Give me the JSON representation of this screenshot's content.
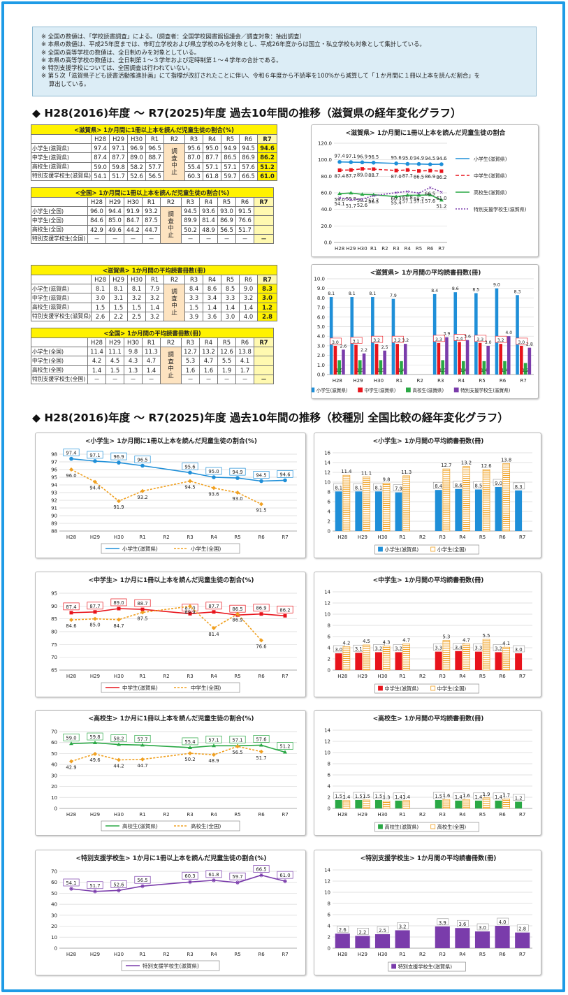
{
  "notes": [
    "※ 全国の数値は、「学校読書調査」による。（調査者：全国学校図書館協議会／調査対象：抽出調査）",
    "※ 本県の数値は、平成25年度までは、市町立学校および県立学校のみを対象とし、平成26年度からは国立・私立学校も対象として集計している。",
    "※ 全国の高等学校の数値は、全日制のみを対象としている。",
    "※ 本県の高等学校の数値は、全日制第１～３学年および定時制第１～４学年の合計である。",
    "※ 特別支援学校については、全国調査は行われていない。",
    "※ 第５次「滋賀県子ども読書活動推進計画」にて指標が改訂されたことに伴い、令和６年度から不読率を100%から減算して「１か月間に１冊以上本を読んだ割合」を",
    "　 算出している。"
  ],
  "sections": [
    "◆ H28(2016)年度 ～ R7(2025)年度  過去10年間の推移（滋賀県の経年変化グラフ）",
    "◆ H28(2016)年度 ～ R7(2025)年度  過去10年間の推移（校種別  全国比較の経年変化グラフ）"
  ],
  "years": [
    "H28",
    "H29",
    "H30",
    "R1",
    "R2",
    "R3",
    "R4",
    "R5",
    "R6",
    "R7"
  ],
  "suspended": "調査中止",
  "dash": "－",
  "tables": [
    {
      "title": "<滋賀県>  1か月間に1冊以上本を読んだ児童生徒の割合(%)",
      "rows": [
        {
          "label": "小学生(滋賀県)",
          "values": [
            "97.4",
            "97.1",
            "96.9",
            "96.5",
            "",
            "95.6",
            "95.0",
            "94.9",
            "94.5",
            "94.6"
          ]
        },
        {
          "label": "中学生(滋賀県)",
          "values": [
            "87.4",
            "87.7",
            "89.0",
            "88.7",
            "",
            "87.0",
            "87.7",
            "86.5",
            "86.9",
            "86.2"
          ]
        },
        {
          "label": "高校生(滋賀県)",
          "values": [
            "59.0",
            "59.8",
            "58.2",
            "57.7",
            "",
            "55.4",
            "57.1",
            "57.1",
            "57.6",
            "51.2"
          ]
        },
        {
          "label": "特別支援学校生(滋賀県)",
          "values": [
            "54.1",
            "51.7",
            "52.6",
            "56.5",
            "",
            "60.3",
            "61.8",
            "59.7",
            "66.5",
            "61.0"
          ]
        }
      ]
    },
    {
      "title": "<全国>  1か月間に1冊以上本を読んだ児童生徒の割合(%)",
      "rows": [
        {
          "label": "小学生(全国)",
          "values": [
            "96.0",
            "94.4",
            "91.9",
            "93.2",
            "",
            "94.5",
            "93.6",
            "93.0",
            "91.5",
            ""
          ]
        },
        {
          "label": "中学生(全国)",
          "values": [
            "84.6",
            "85.0",
            "84.7",
            "87.5",
            "",
            "89.9",
            "81.4",
            "86.9",
            "76.6",
            ""
          ]
        },
        {
          "label": "高校生(全国)",
          "values": [
            "42.9",
            "49.6",
            "44.2",
            "44.7",
            "",
            "50.2",
            "48.9",
            "56.5",
            "51.7",
            ""
          ]
        },
        {
          "label": "特別支援学校生(全国)",
          "values": [
            "－",
            "－",
            "－",
            "－",
            "",
            "－",
            "－",
            "－",
            "－",
            "－"
          ]
        }
      ]
    },
    {
      "title": "<滋賀県>  1か月間の平均読書冊数(冊)",
      "rows": [
        {
          "label": "小学生(滋賀県)",
          "values": [
            "8.1",
            "8.1",
            "8.1",
            "7.9",
            "",
            "8.4",
            "8.6",
            "8.5",
            "9.0",
            "8.3"
          ]
        },
        {
          "label": "中学生(滋賀県)",
          "values": [
            "3.0",
            "3.1",
            "3.2",
            "3.2",
            "",
            "3.3",
            "3.4",
            "3.3",
            "3.2",
            "3.0"
          ]
        },
        {
          "label": "高校生(滋賀県)",
          "values": [
            "1.5",
            "1.5",
            "1.5",
            "1.4",
            "",
            "1.5",
            "1.4",
            "1.4",
            "1.4",
            "1.2"
          ]
        },
        {
          "label": "特別支援学校生(滋賀県)",
          "values": [
            "2.6",
            "2.2",
            "2.5",
            "3.2",
            "",
            "3.9",
            "3.6",
            "3.0",
            "4.0",
            "2.8"
          ]
        }
      ]
    },
    {
      "title": "<全国>  1か月間の平均読書冊数(冊)",
      "rows": [
        {
          "label": "小学生(全国)",
          "values": [
            "11.4",
            "11.1",
            "9.8",
            "11.3",
            "",
            "12.7",
            "13.2",
            "12.6",
            "13.8",
            ""
          ]
        },
        {
          "label": "中学生(全国)",
          "values": [
            "4.2",
            "4.5",
            "4.3",
            "4.7",
            "",
            "5.3",
            "4.7",
            "5.5",
            "4.1",
            ""
          ]
        },
        {
          "label": "高校生(全国)",
          "values": [
            "1.4",
            "1.5",
            "1.3",
            "1.4",
            "",
            "1.6",
            "1.6",
            "1.9",
            "1.7",
            ""
          ]
        },
        {
          "label": "特別支援学校生(全国)",
          "values": [
            "－",
            "－",
            "－",
            "－",
            "",
            "－",
            "－",
            "－",
            "－",
            "－"
          ]
        }
      ]
    }
  ],
  "chart_data": [
    {
      "id": "c1",
      "type": "line",
      "title": "<滋賀県>  1か月間に1冊以上本を読んだ児童生徒の割合",
      "categories": [
        "H28",
        "H29",
        "H30",
        "R1",
        "R2",
        "R3",
        "R4",
        "R5",
        "R6",
        "R7"
      ],
      "ylim": [
        0,
        120
      ],
      "yticks": [
        "0.0",
        "20.0",
        "40.0",
        "60.0",
        "80.0",
        "100.0",
        "120.0"
      ],
      "legend": "right",
      "series": [
        {
          "name": "小学生(滋賀県)",
          "color": "#1f8fd8",
          "values": [
            97.4,
            97.1,
            96.9,
            96.5,
            null,
            95.6,
            95.0,
            94.9,
            94.5,
            94.6
          ]
        },
        {
          "name": "中学生(滋賀県)",
          "color": "#e8141c",
          "values": [
            87.4,
            87.7,
            89.0,
            88.7,
            null,
            87.0,
            87.7,
            86.5,
            86.9,
            86.2
          ]
        },
        {
          "name": "高校生(滋賀県)",
          "color": "#2aa845",
          "values": [
            59.0,
            59.8,
            58.2,
            57.7,
            null,
            55.4,
            57.1,
            57.1,
            57.6,
            51.2
          ]
        },
        {
          "name": "特別支援学校生(滋賀県)",
          "color": "#7a3cab",
          "values": [
            54.1,
            51.7,
            52.6,
            56.5,
            null,
            60.3,
            61.8,
            59.7,
            66.5,
            61.0
          ]
        }
      ]
    },
    {
      "id": "c2",
      "type": "bar",
      "title": "<滋賀県>  1か月間の平均読書冊数(冊)",
      "categories": [
        "H28",
        "H29",
        "H30",
        "R1",
        "R2",
        "R3",
        "R4",
        "R5",
        "R6",
        "R7"
      ],
      "ylim": [
        0,
        10
      ],
      "yticks": [
        "0.0",
        "1.0",
        "2.0",
        "3.0",
        "4.0",
        "5.0",
        "6.0",
        "7.0",
        "8.0",
        "9.0",
        "10.0"
      ],
      "legend": "bottom",
      "series": [
        {
          "name": "小学生(滋賀県)",
          "color": "#1f8fd8",
          "values": [
            8.1,
            8.1,
            8.1,
            7.9,
            null,
            8.4,
            8.6,
            8.5,
            9.0,
            8.3
          ]
        },
        {
          "name": "中学生(滋賀県)",
          "color": "#e8141c",
          "values": [
            3.0,
            3.1,
            3.2,
            3.2,
            null,
            3.3,
            3.4,
            3.3,
            3.2,
            3.0
          ]
        },
        {
          "name": "高校生(滋賀県)",
          "color": "#2aa845",
          "values": [
            1.5,
            1.5,
            1.5,
            1.4,
            null,
            1.5,
            1.4,
            1.4,
            1.4,
            1.2
          ]
        },
        {
          "name": "特別支援学校生(滋賀県)",
          "color": "#7a3cab",
          "values": [
            2.6,
            2.2,
            2.5,
            3.2,
            null,
            3.9,
            3.6,
            3.0,
            4.0,
            2.8
          ]
        }
      ]
    },
    {
      "id": "c3",
      "type": "line",
      "title": "<小学生>  1か月間に1冊以上本を読んだ児童生徒の割合(%)",
      "categories": [
        "H28",
        "H29",
        "H30",
        "R1",
        "R2",
        "R3",
        "R4",
        "R5",
        "R6",
        "R7"
      ],
      "ylim": [
        88,
        98
      ],
      "yticks": [
        "88",
        "89",
        "90",
        "91",
        "92",
        "93",
        "94",
        "95",
        "96",
        "97",
        "98"
      ],
      "legend": "bottom",
      "series": [
        {
          "name": "小学生(滋賀県)",
          "color": "#1f8fd8",
          "values": [
            97.4,
            97.1,
            96.9,
            96.5,
            null,
            95.6,
            95.0,
            94.9,
            94.5,
            94.6
          ]
        },
        {
          "name": "小学生(全国)",
          "color": "#f0a020",
          "values": [
            96.0,
            94.4,
            91.9,
            93.2,
            null,
            94.5,
            93.6,
            93.0,
            91.5,
            null
          ]
        }
      ]
    },
    {
      "id": "c4",
      "type": "bar",
      "title": "<小学生>  1か月間の平均読書冊数(冊)",
      "categories": [
        "H28",
        "H29",
        "H30",
        "R1",
        "R2",
        "R3",
        "R4",
        "R5",
        "R6",
        "R7"
      ],
      "ylim": [
        0,
        16
      ],
      "yticks": [
        "0",
        "2",
        "4",
        "6",
        "8",
        "10",
        "12",
        "14",
        "16"
      ],
      "legend": "bottom",
      "series": [
        {
          "name": "小学生(滋賀県)",
          "color": "#1f8fd8",
          "values": [
            8.1,
            8.1,
            8.1,
            7.9,
            null,
            8.4,
            8.6,
            8.5,
            9.0,
            8.3
          ]
        },
        {
          "name": "小学生(全国)",
          "color": "#f0a020",
          "values": [
            11.4,
            11.1,
            9.8,
            11.3,
            null,
            12.7,
            13.2,
            12.6,
            13.8,
            null
          ]
        }
      ]
    },
    {
      "id": "c5",
      "type": "line",
      "title": "<中学生>  1か月に1冊以上本を読んだ児童生徒の割合(%)",
      "categories": [
        "H28",
        "H29",
        "H30",
        "R1",
        "R2",
        "R3",
        "R4",
        "R5",
        "R6",
        "R7"
      ],
      "ylim": [
        65,
        95
      ],
      "yticks": [
        "65",
        "70",
        "75",
        "80",
        "85",
        "90",
        "95"
      ],
      "legend": "bottom",
      "series": [
        {
          "name": "中学生(滋賀県)",
          "color": "#e8141c",
          "values": [
            87.4,
            87.7,
            89.0,
            88.7,
            null,
            87.0,
            87.7,
            86.5,
            86.9,
            86.2
          ]
        },
        {
          "name": "中学生(全国)",
          "color": "#f0a020",
          "values": [
            84.6,
            85.0,
            84.7,
            87.5,
            null,
            89.9,
            81.4,
            86.9,
            76.6,
            null
          ]
        }
      ]
    },
    {
      "id": "c6",
      "type": "bar",
      "title": "<中学生>  1か月間の平均読書冊数(冊)",
      "categories": [
        "H28",
        "H29",
        "H30",
        "R1",
        "R2",
        "R3",
        "R4",
        "R5",
        "R6",
        "R7"
      ],
      "ylim": [
        0,
        14
      ],
      "yticks": [
        "0",
        "2",
        "4",
        "6",
        "8",
        "10",
        "12",
        "14"
      ],
      "legend": "bottom",
      "series": [
        {
          "name": "中学生(滋賀県)",
          "color": "#e8141c",
          "values": [
            3.0,
            3.1,
            3.2,
            3.2,
            null,
            3.3,
            3.4,
            3.3,
            3.2,
            3.0
          ]
        },
        {
          "name": "中学生(全国)",
          "color": "#f0a020",
          "values": [
            4.2,
            4.5,
            4.3,
            4.7,
            null,
            5.3,
            4.7,
            5.5,
            4.1,
            null
          ]
        }
      ]
    },
    {
      "id": "c7",
      "type": "line",
      "title": "<高校生>  1か月に1冊以上本を読んだ児童生徒の割合(%)",
      "categories": [
        "H28",
        "H29",
        "H30",
        "R1",
        "R2",
        "R3",
        "R4",
        "R5",
        "R6",
        "R7"
      ],
      "ylim": [
        0,
        70
      ],
      "yticks": [
        "0",
        "10",
        "20",
        "30",
        "40",
        "50",
        "60",
        "70"
      ],
      "legend": "bottom",
      "series": [
        {
          "name": "高校生(滋賀県)",
          "color": "#2aa845",
          "values": [
            59.0,
            59.8,
            58.2,
            57.7,
            null,
            55.4,
            57.1,
            57.1,
            57.6,
            51.2
          ]
        },
        {
          "name": "高校生(全国)",
          "color": "#f0a020",
          "values": [
            42.9,
            49.6,
            44.2,
            44.7,
            null,
            50.2,
            48.9,
            56.5,
            51.7,
            null
          ]
        }
      ]
    },
    {
      "id": "c8",
      "type": "bar",
      "title": "<高校生>  1か月間の平均読書冊数(冊)",
      "categories": [
        "H28",
        "H29",
        "H30",
        "R1",
        "R2",
        "R3",
        "R4",
        "R5",
        "R6",
        "R7"
      ],
      "ylim": [
        0,
        14
      ],
      "yticks": [
        "0",
        "2",
        "4",
        "6",
        "8",
        "10",
        "12",
        "14"
      ],
      "legend": "bottom",
      "series": [
        {
          "name": "高校生(滋賀県)",
          "color": "#2aa845",
          "values": [
            1.5,
            1.5,
            1.5,
            1.4,
            null,
            1.5,
            1.4,
            1.4,
            1.4,
            1.2
          ]
        },
        {
          "name": "高校生(全国)",
          "color": "#f0a020",
          "values": [
            1.4,
            1.5,
            1.3,
            1.4,
            null,
            1.6,
            1.6,
            1.9,
            1.7,
            null
          ]
        }
      ]
    },
    {
      "id": "c9",
      "type": "line",
      "title": "<特別支援学校生>  1か月に1冊以上本を読んだ児童生徒の割合(%)",
      "categories": [
        "H28",
        "H29",
        "H30",
        "R1",
        "R2",
        "R3",
        "R4",
        "R5",
        "R6",
        "R7"
      ],
      "ylim": [
        0,
        70
      ],
      "yticks": [
        "0",
        "10",
        "20",
        "30",
        "40",
        "50",
        "60",
        "70"
      ],
      "legend": "bottom",
      "series": [
        {
          "name": "特別支援学校生(滋賀県)",
          "color": "#7a3cab",
          "values": [
            54.1,
            51.7,
            52.6,
            56.5,
            null,
            60.3,
            61.8,
            59.7,
            66.5,
            61.0
          ]
        }
      ]
    },
    {
      "id": "c10",
      "type": "bar",
      "title": "<特別支援学校生>  1か月間の平均読書冊数(冊)",
      "categories": [
        "H28",
        "H29",
        "H30",
        "R1",
        "R2",
        "R3",
        "R4",
        "R5",
        "R6",
        "R7"
      ],
      "ylim": [
        0,
        14
      ],
      "yticks": [
        "0",
        "2",
        "4",
        "6",
        "8",
        "10",
        "12",
        "14"
      ],
      "legend": "bottom",
      "series": [
        {
          "name": "特別支援学校生(滋賀県)",
          "color": "#7a3cab",
          "values": [
            2.6,
            2.2,
            2.5,
            3.2,
            null,
            3.9,
            3.6,
            3.0,
            4.0,
            2.8
          ]
        }
      ]
    }
  ]
}
